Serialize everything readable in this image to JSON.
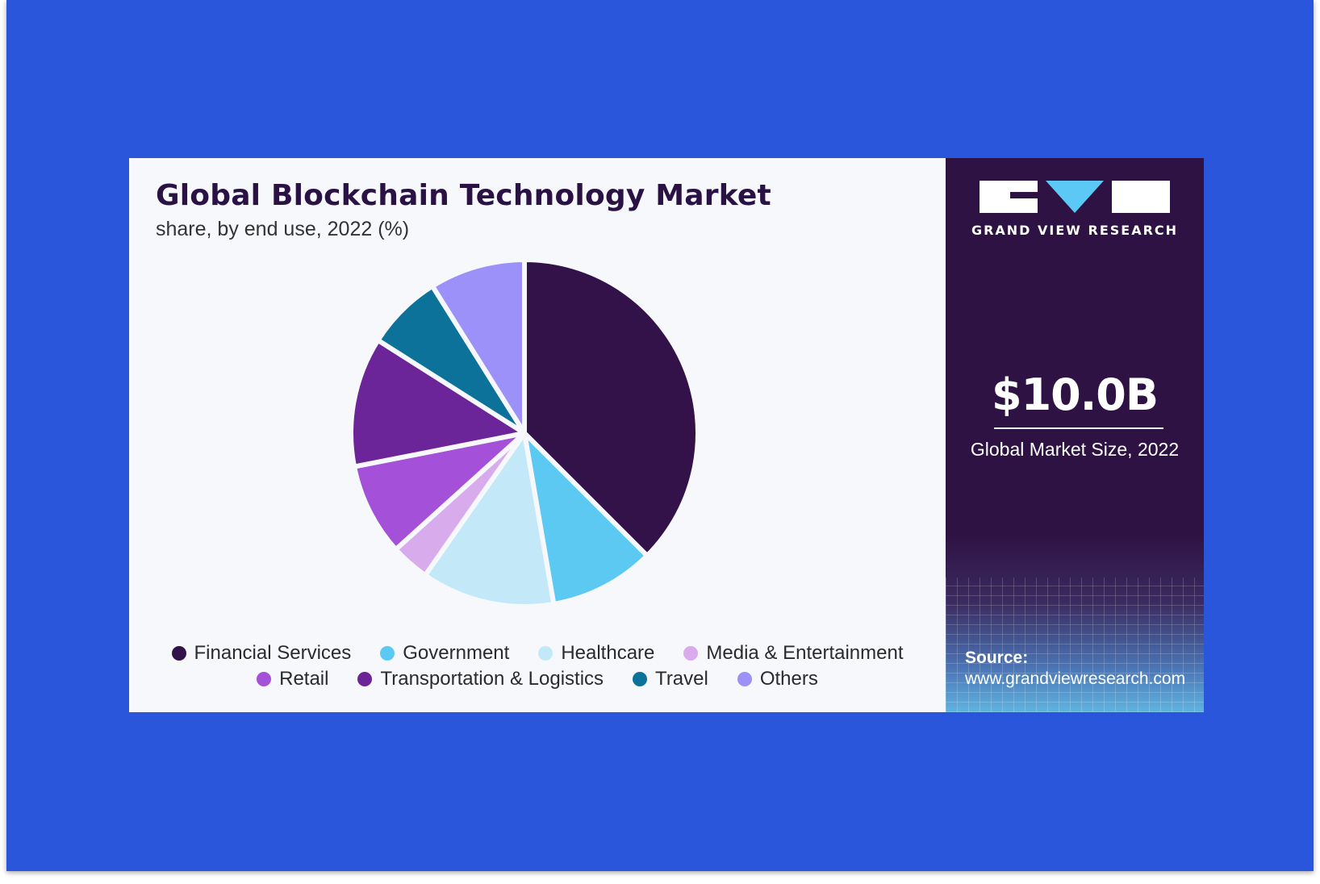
{
  "chart_data": {
    "type": "pie",
    "title": "Global Blockchain Technology Market",
    "subtitle": "share, by end use, 2022 (%)",
    "categories": [
      "Financial Services",
      "Government",
      "Healthcare",
      "Media & Entertainment",
      "Retail",
      "Transportation & Logistics",
      "Travel",
      "Others"
    ],
    "values": [
      37.5,
      9.8,
      12.4,
      3.6,
      8.6,
      12.1,
      7.1,
      8.9
    ],
    "colors": [
      "#33124a",
      "#5cc9f3",
      "#c3e9f9",
      "#d8acec",
      "#a450d8",
      "#6b2599",
      "#0d7299",
      "#9b91f8"
    ],
    "legend_position": "bottom",
    "legend_rows": [
      [
        {
          "label": "Financial Services",
          "color": "#33124a"
        },
        {
          "label": "Government",
          "color": "#5cc9f3"
        },
        {
          "label": "Healthcare",
          "color": "#c3e9f9"
        },
        {
          "label": "Media & Entertainment",
          "color": "#d8acec"
        }
      ],
      [
        {
          "label": "Retail",
          "color": "#a450d8"
        },
        {
          "label": "Transportation & Logistics",
          "color": "#6b2599"
        },
        {
          "label": "Travel",
          "color": "#0d7299"
        },
        {
          "label": "Others",
          "color": "#9b91f8"
        }
      ]
    ]
  },
  "sidebar": {
    "brand_name": "GRAND VIEW RESEARCH",
    "logo_icon": "gvr-logo-icon",
    "market_value": "$10.0B",
    "market_label": "Global Market Size, 2022",
    "source_label": "Source:",
    "source_url": "www.grandviewresearch.com",
    "accent_color": "#5bc8f5",
    "background_color": "#2f1244"
  }
}
